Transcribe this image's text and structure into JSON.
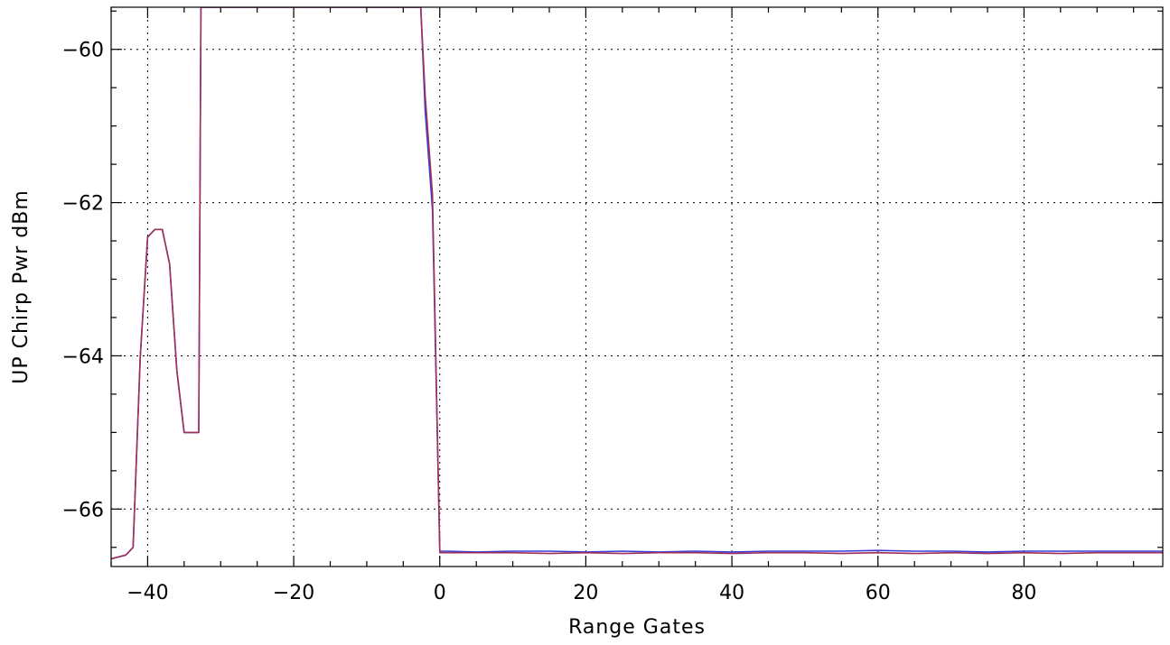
{
  "chart_data": {
    "type": "line",
    "title": "",
    "xlabel": "Range Gates",
    "ylabel": "UP Chirp Pwr dBm",
    "xlim": [
      -45,
      99
    ],
    "ylim": [
      -66.75,
      -59.45
    ],
    "xticks": [
      -40,
      -20,
      0,
      20,
      40,
      60,
      80
    ],
    "xtick_labels": [
      "−40",
      "−20",
      "0",
      "20",
      "40",
      "60",
      "80"
    ],
    "yticks": [
      -66,
      -64,
      -62,
      -60
    ],
    "ytick_labels": [
      "−66",
      "−64",
      "−62",
      "−60"
    ],
    "x_minor_step": 5,
    "y_minor_step": 0.5,
    "grid": true,
    "series": [
      {
        "color": "#3b3bd6",
        "points": [
          [
            -45,
            -66.65
          ],
          [
            -43,
            -66.6
          ],
          [
            -42,
            -66.5
          ],
          [
            -41,
            -64.0
          ],
          [
            -40,
            -62.45
          ],
          [
            -39,
            -62.35
          ],
          [
            -38,
            -62.35
          ],
          [
            -37,
            -62.8
          ],
          [
            -36,
            -64.2
          ],
          [
            -35,
            -65.0
          ],
          [
            -34,
            -65.0
          ],
          [
            -33,
            -65.0
          ],
          [
            -32.7,
            -59.45
          ],
          [
            -2.6,
            -59.45
          ],
          [
            -2,
            -60.8
          ],
          [
            -1,
            -62.1
          ],
          [
            0,
            -66.55
          ],
          [
            1,
            -66.55
          ],
          [
            5,
            -66.56
          ],
          [
            10,
            -66.55
          ],
          [
            15,
            -66.55
          ],
          [
            20,
            -66.56
          ],
          [
            25,
            -66.55
          ],
          [
            30,
            -66.56
          ],
          [
            35,
            -66.55
          ],
          [
            40,
            -66.56
          ],
          [
            45,
            -66.55
          ],
          [
            50,
            -66.55
          ],
          [
            55,
            -66.55
          ],
          [
            60,
            -66.54
          ],
          [
            65,
            -66.55
          ],
          [
            70,
            -66.55
          ],
          [
            75,
            -66.56
          ],
          [
            80,
            -66.55
          ],
          [
            85,
            -66.55
          ],
          [
            90,
            -66.55
          ],
          [
            95,
            -66.55
          ],
          [
            99,
            -66.55
          ]
        ]
      },
      {
        "color": "#a0305a",
        "points": [
          [
            -45,
            -66.65
          ],
          [
            -43,
            -66.6
          ],
          [
            -42,
            -66.5
          ],
          [
            -41,
            -64.0
          ],
          [
            -40,
            -62.45
          ],
          [
            -39,
            -62.35
          ],
          [
            -38,
            -62.35
          ],
          [
            -37,
            -62.8
          ],
          [
            -36,
            -64.2
          ],
          [
            -35,
            -65.0
          ],
          [
            -34,
            -65.0
          ],
          [
            -33,
            -65.0
          ],
          [
            -32.7,
            -59.45
          ],
          [
            -2.6,
            -59.45
          ],
          [
            -2,
            -60.6
          ],
          [
            -1,
            -61.9
          ],
          [
            0,
            -66.57
          ],
          [
            1,
            -66.57
          ],
          [
            5,
            -66.57
          ],
          [
            10,
            -66.57
          ],
          [
            15,
            -66.58
          ],
          [
            20,
            -66.57
          ],
          [
            25,
            -66.58
          ],
          [
            30,
            -66.57
          ],
          [
            35,
            -66.57
          ],
          [
            40,
            -66.58
          ],
          [
            45,
            -66.57
          ],
          [
            50,
            -66.57
          ],
          [
            55,
            -66.58
          ],
          [
            60,
            -66.57
          ],
          [
            65,
            -66.58
          ],
          [
            70,
            -66.57
          ],
          [
            75,
            -66.58
          ],
          [
            80,
            -66.57
          ],
          [
            85,
            -66.58
          ],
          [
            90,
            -66.57
          ],
          [
            95,
            -66.57
          ],
          [
            99,
            -66.57
          ]
        ]
      }
    ]
  }
}
